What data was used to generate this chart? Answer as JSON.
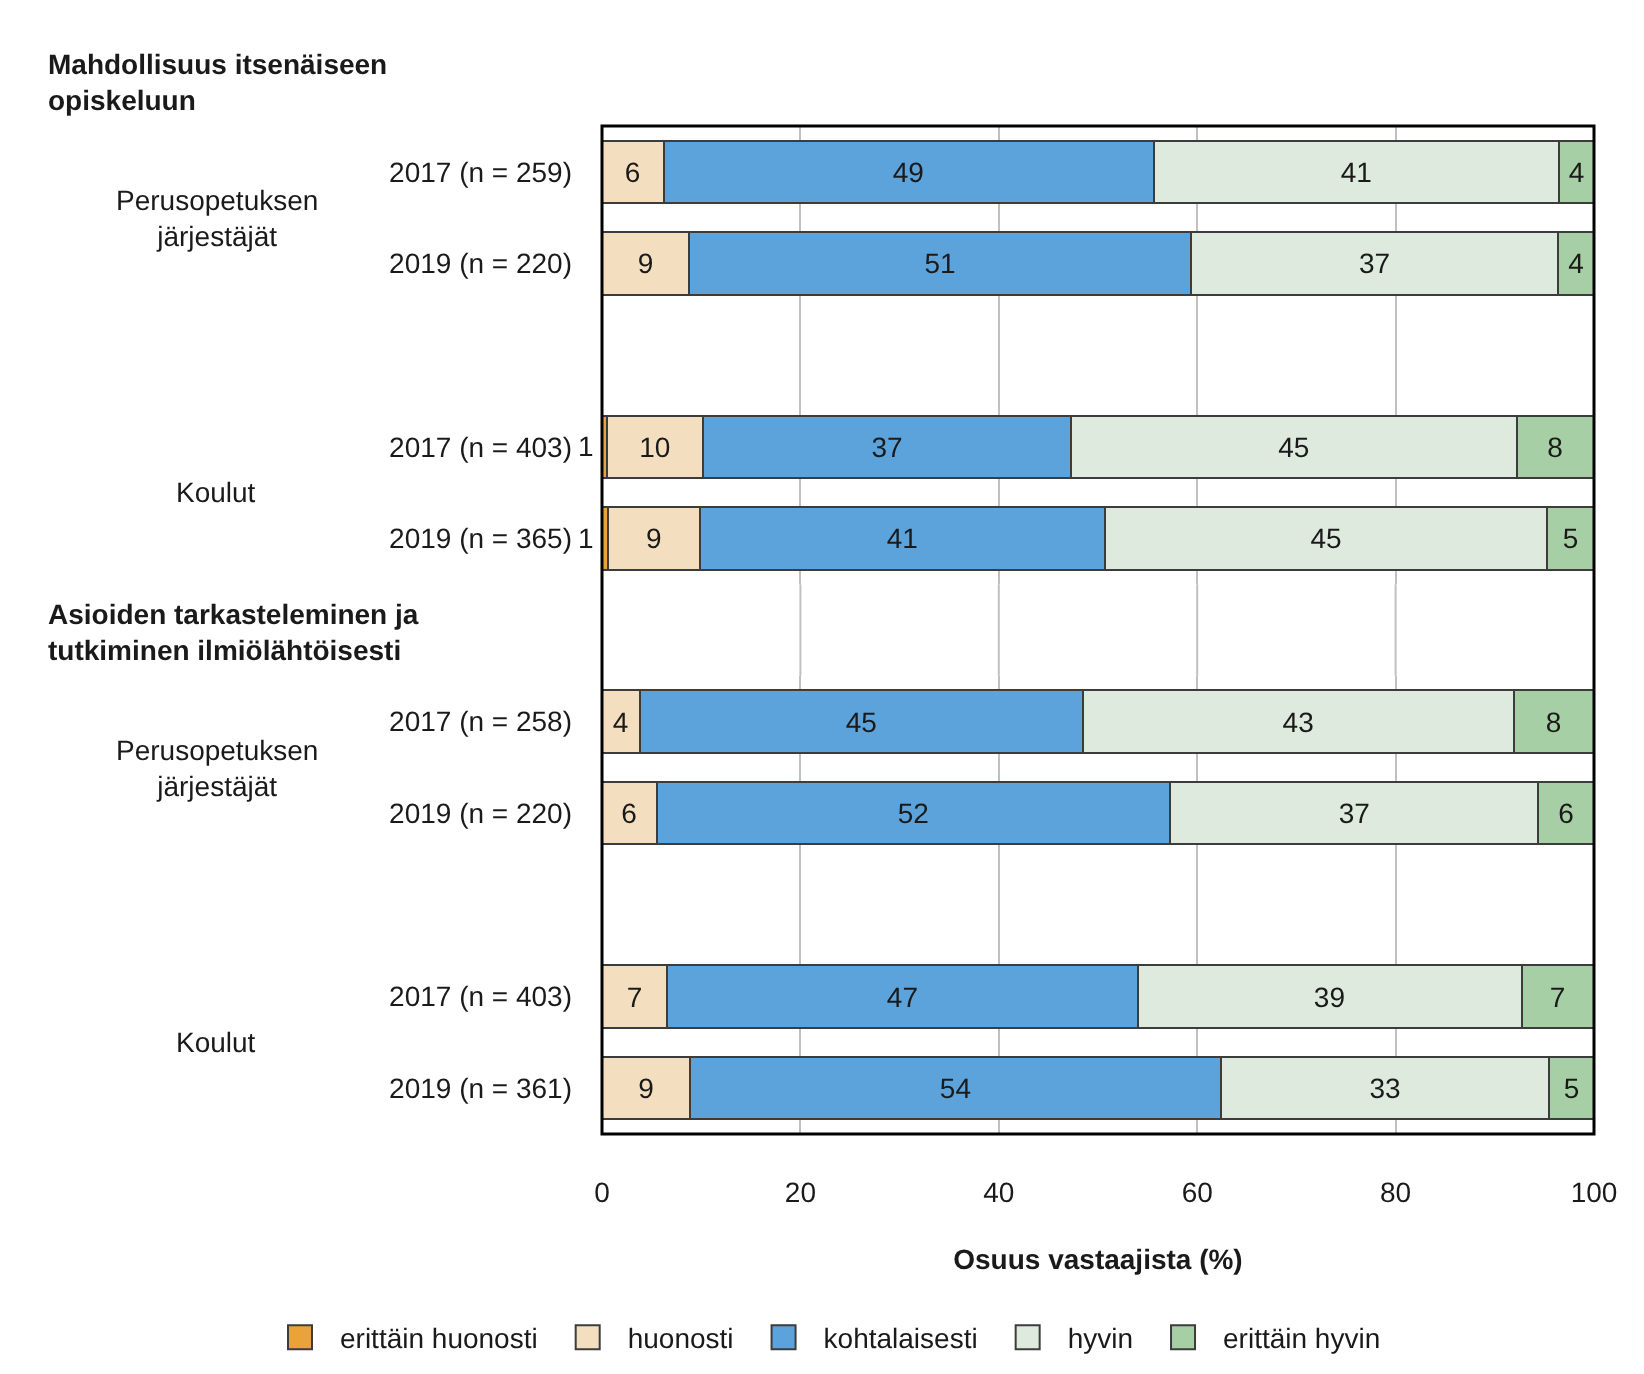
{
  "chart_data": [
    {
      "type": "bar",
      "orientation": "horizontal",
      "stacked": true,
      "title": "Mahdollisuus itsenäiseen opiskeluun",
      "categories": [
        "2017 (n = 259)",
        "2019 (n = 220)",
        null,
        "2017 (n = 403)",
        "2019 (n = 365)"
      ],
      "annotations": [
        "Perusopetuksen järjestäjät",
        "Koulut"
      ],
      "series": [
        {
          "name": "erittäin huonosti",
          "color": "#eaa33b",
          "values": [
            null,
            null,
            null,
            0.5,
            0.6
          ],
          "value_labels": [
            null,
            null,
            null,
            "1",
            "1"
          ]
        },
        {
          "name": "huonosti",
          "color": "#f3dfbf",
          "values": [
            6.2,
            8.8,
            null,
            9.7,
            9.3
          ],
          "value_labels": [
            "6",
            "9",
            null,
            "10",
            "9"
          ]
        },
        {
          "name": "kohtalaisesti",
          "color": "#5ba3da",
          "values": [
            49.4,
            50.6,
            null,
            37.1,
            40.8
          ],
          "value_labels": [
            "49",
            "51",
            null,
            "37",
            "41"
          ]
        },
        {
          "name": "hyvin",
          "color": "#deeadd",
          "values": [
            40.9,
            37.0,
            null,
            44.9,
            44.6
          ],
          "value_labels": [
            "41",
            "37",
            null,
            "45",
            "45"
          ]
        },
        {
          "name": "erittäin hyvin",
          "color": "#a7cfa5",
          "values": [
            3.5,
            3.6,
            null,
            7.8,
            4.7
          ],
          "value_labels": [
            "4",
            "4",
            null,
            "8",
            "5"
          ]
        }
      ],
      "xlim": [
        0,
        100
      ],
      "xticks": [
        0,
        20,
        40,
        60,
        80,
        100
      ],
      "grid": "x",
      "tick_labels": "y",
      "legend": "bottom"
    },
    {
      "type": "bar",
      "orientation": "horizontal",
      "stacked": true,
      "title": "Asioiden tarkasteleminen ja tutkiminen ilmiölähtöisesti",
      "categories": [
        "2017 (n = 258)",
        "2019 (n = 220)",
        null,
        "2017 (n = 403)",
        "2019 (n = 361)"
      ],
      "annotations": [
        "Perusopetuksen järjestäjät",
        "Koulut"
      ],
      "series": [
        {
          "color": "#f3dfbf",
          "values": [
            3.8,
            5.5,
            null,
            6.6,
            8.9
          ],
          "value_labels": [
            "4",
            "6",
            null,
            "7",
            "9"
          ]
        },
        {
          "color": "#5ba3da",
          "values": [
            44.7,
            51.8,
            null,
            47.4,
            53.5
          ],
          "value_labels": [
            "45",
            "52",
            null,
            "47",
            "54"
          ]
        },
        {
          "color": "#deeadd",
          "values": [
            43.4,
            37.1,
            null,
            38.7,
            33.1
          ],
          "value_labels": [
            "43",
            "37",
            null,
            "39",
            "33"
          ]
        },
        {
          "color": "#a7cfa5",
          "values": [
            8.1,
            5.6,
            null,
            7.3,
            4.5
          ],
          "value_labels": [
            "8",
            "6",
            null,
            "7",
            "5"
          ]
        }
      ],
      "xlim": [
        0,
        100
      ],
      "xticks": [
        0,
        20,
        40,
        60,
        80,
        100
      ],
      "grid": "x",
      "xlabel": "Osuus vastaajista (%)"
    }
  ]
}
